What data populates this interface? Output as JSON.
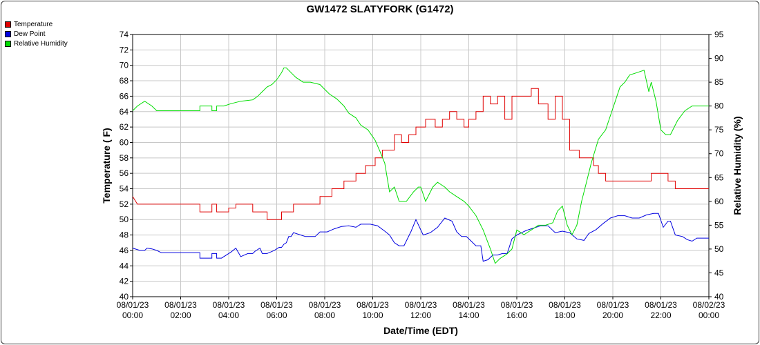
{
  "chart_data": {
    "type": "line",
    "title": "GW1472 SLATYFORK (G1472)",
    "xlabel": "Date/Time (EDT)",
    "ylabel": "Temperature ( F)",
    "y2label": "Relative Humidity (%)",
    "xlim": [
      0,
      24
    ],
    "ylim": [
      40,
      74
    ],
    "y2lim": [
      40,
      95
    ],
    "x_ticks": [
      {
        "date": "08/01/23",
        "time": "00:00"
      },
      {
        "date": "08/01/23",
        "time": "02:00"
      },
      {
        "date": "08/01/23",
        "time": "04:00"
      },
      {
        "date": "08/01/23",
        "time": "06:00"
      },
      {
        "date": "08/01/23",
        "time": "08:00"
      },
      {
        "date": "08/01/23",
        "time": "10:00"
      },
      {
        "date": "08/01/23",
        "time": "12:00"
      },
      {
        "date": "08/01/23",
        "time": "14:00"
      },
      {
        "date": "08/01/23",
        "time": "16:00"
      },
      {
        "date": "08/01/23",
        "time": "18:00"
      },
      {
        "date": "08/01/23",
        "time": "20:00"
      },
      {
        "date": "08/01/23",
        "time": "22:00"
      },
      {
        "date": "08/02/23",
        "time": "00:00"
      }
    ],
    "y_ticks": [
      40,
      42,
      44,
      46,
      48,
      50,
      52,
      54,
      56,
      58,
      60,
      62,
      64,
      66,
      68,
      70,
      72,
      74
    ],
    "y2_ticks": [
      40,
      45,
      50,
      55,
      60,
      65,
      70,
      75,
      80,
      85,
      90,
      95
    ],
    "grid": true,
    "legend_position": "top-left",
    "series": [
      {
        "name": "Temperature",
        "axis": "left",
        "color": "#e00000",
        "x": [
          0,
          0.2,
          2.8,
          2.8,
          3.3,
          3.3,
          3.5,
          3.5,
          4.0,
          4.0,
          4.3,
          4.3,
          5.0,
          5.0,
          5.6,
          5.6,
          6.2,
          6.2,
          6.7,
          6.7,
          7.8,
          7.8,
          8.3,
          8.3,
          8.8,
          8.8,
          9.3,
          9.3,
          9.7,
          9.7,
          10.1,
          10.1,
          10.4,
          10.4,
          10.6,
          10.6,
          10.9,
          10.9,
          11.2,
          11.2,
          11.5,
          11.5,
          11.8,
          11.8,
          12.2,
          12.2,
          12.6,
          12.6,
          12.9,
          12.9,
          13.2,
          13.2,
          13.5,
          13.5,
          13.8,
          13.8,
          14.0,
          14.0,
          14.3,
          14.3,
          14.6,
          14.6,
          14.9,
          14.9,
          15.2,
          15.2,
          15.5,
          15.5,
          15.8,
          15.8,
          16.0,
          16.0,
          16.6,
          16.6,
          16.9,
          16.9,
          17.3,
          17.3,
          17.6,
          17.6,
          17.9,
          17.9,
          18.2,
          18.2,
          18.6,
          18.6,
          19.2,
          19.2,
          19.4,
          19.4,
          19.7,
          19.7,
          20.2,
          20.2,
          20.7,
          20.7,
          21.0,
          21.0,
          21.6,
          21.6,
          22.3,
          22.3,
          22.6,
          22.6,
          23.0,
          23.0,
          24.0
        ],
        "values": [
          53,
          52,
          52,
          51,
          51,
          52,
          52,
          51,
          51,
          51.5,
          51.5,
          52,
          52,
          51,
          51,
          50,
          50,
          51,
          51,
          52,
          52,
          53,
          53,
          54,
          54,
          55,
          55,
          56,
          56,
          57,
          57,
          58,
          58,
          59,
          59,
          59,
          59,
          61,
          61,
          60,
          60,
          61,
          61,
          62,
          62,
          63,
          63,
          62,
          62,
          63,
          63,
          64,
          64,
          63,
          63,
          62,
          62,
          63,
          63,
          64,
          64,
          66,
          66,
          65,
          65,
          66,
          66,
          63,
          63,
          66,
          66,
          66,
          66,
          67,
          67,
          65,
          65,
          63,
          63,
          66,
          66,
          63,
          63,
          59,
          59,
          58,
          58,
          57,
          57,
          56,
          56,
          55,
          55,
          55,
          55,
          55,
          55,
          55,
          55,
          56,
          56,
          55,
          55,
          54,
          54,
          54,
          54
        ]
      },
      {
        "name": "Dew Point",
        "axis": "left",
        "color": "#0000e0",
        "x": [
          0,
          0.3,
          0.5,
          0.6,
          0.8,
          1.0,
          1.2,
          2.8,
          2.8,
          3.3,
          3.3,
          3.5,
          3.5,
          3.7,
          4.1,
          4.3,
          4.5,
          4.8,
          5.0,
          5.1,
          5.3,
          5.4,
          5.6,
          5.9,
          6.1,
          6.2,
          6.3,
          6.4,
          6.5,
          6.6,
          6.7,
          7.0,
          7.2,
          7.6,
          7.8,
          8.0,
          8.1,
          8.4,
          8.7,
          9.0,
          9.3,
          9.5,
          9.9,
          10.2,
          10.5,
          10.7,
          10.9,
          11.1,
          11.3,
          11.6,
          11.8,
          12.1,
          12.4,
          12.7,
          13.0,
          13.3,
          13.5,
          13.7,
          13.9,
          14.1,
          14.3,
          14.5,
          14.6,
          14.8,
          15.0,
          15.2,
          15.4,
          15.6,
          15.8,
          16.0,
          16.4,
          16.6,
          17.0,
          17.3,
          17.6,
          17.9,
          18.2,
          18.5,
          18.8,
          19.0,
          19.3,
          19.6,
          19.9,
          20.2,
          20.5,
          20.8,
          21.1,
          21.4,
          21.7,
          21.9,
          22.1,
          22.3,
          22.4,
          22.6,
          22.9,
          23.1,
          23.3,
          23.5,
          24.0
        ],
        "values": [
          46.3,
          46.0,
          46.0,
          46.3,
          46.2,
          46.0,
          45.7,
          45.7,
          45.0,
          45.0,
          45.6,
          45.6,
          45.0,
          45.0,
          45.8,
          46.3,
          45.2,
          45.6,
          45.6,
          45.9,
          46.3,
          45.6,
          45.6,
          46.0,
          46.4,
          46.4,
          46.8,
          47.0,
          47.8,
          47.8,
          48.3,
          48.0,
          47.8,
          47.8,
          48.4,
          48.4,
          48.4,
          48.8,
          49.1,
          49.2,
          49.0,
          49.4,
          49.4,
          49.2,
          48.5,
          48.0,
          47.0,
          46.6,
          46.6,
          48.5,
          50.0,
          48.0,
          48.3,
          49.0,
          50.2,
          49.8,
          48.4,
          47.8,
          47.8,
          47.2,
          46.6,
          46.6,
          44.6,
          44.8,
          45.4,
          45.4,
          45.6,
          45.6,
          47.5,
          48.0,
          48.6,
          48.8,
          49.2,
          49.2,
          48.3,
          48.5,
          48.3,
          47.5,
          47.3,
          48.2,
          48.7,
          49.5,
          50.2,
          50.5,
          50.5,
          50.2,
          50.2,
          50.6,
          50.8,
          50.8,
          49.0,
          49.8,
          49.8,
          48.0,
          47.8,
          47.4,
          47.2,
          47.6,
          47.6
        ]
      },
      {
        "name": "Relative Humidity",
        "axis": "right",
        "color": "#00dd00",
        "x": [
          0,
          0.2,
          0.5,
          0.8,
          1.0,
          1.2,
          2.8,
          2.8,
          3.3,
          3.3,
          3.5,
          3.5,
          3.8,
          4.1,
          4.5,
          5.0,
          5.2,
          5.4,
          5.6,
          5.8,
          6.0,
          6.2,
          6.3,
          6.4,
          6.5,
          6.6,
          6.8,
          7.1,
          7.4,
          7.8,
          8.0,
          8.2,
          8.5,
          8.8,
          9.0,
          9.3,
          9.5,
          9.8,
          10.1,
          10.3,
          10.5,
          10.7,
          10.9,
          11.1,
          11.4,
          11.7,
          11.9,
          12.0,
          12.2,
          12.5,
          12.7,
          13.0,
          13.2,
          13.5,
          13.8,
          14.0,
          14.3,
          14.6,
          14.9,
          15.1,
          15.3,
          15.6,
          15.8,
          16.0,
          16.3,
          16.6,
          16.9,
          17.2,
          17.5,
          17.7,
          17.9,
          18.1,
          18.3,
          18.5,
          18.7,
          18.9,
          19.1,
          19.4,
          19.7,
          19.9,
          20.1,
          20.3,
          20.5,
          20.7,
          21.0,
          21.3,
          21.5,
          21.6,
          21.8,
          22.0,
          22.2,
          22.4,
          22.7,
          23.0,
          23.3,
          23.6,
          24.0
        ],
        "values": [
          79,
          80,
          81,
          80,
          79,
          79,
          79,
          80,
          80,
          79,
          79,
          80,
          80,
          80.5,
          81,
          81.3,
          82,
          83,
          84,
          84.5,
          85.5,
          87,
          88,
          88,
          87.5,
          87,
          86,
          85,
          85,
          84.5,
          83.5,
          82.5,
          81.5,
          80,
          78.5,
          77.5,
          76,
          75,
          72.8,
          70.5,
          68,
          62,
          63,
          60,
          60,
          62,
          63,
          63,
          60,
          63,
          64,
          63,
          62,
          61,
          60,
          59,
          57,
          54,
          50,
          47,
          48,
          49,
          50,
          54,
          53,
          54,
          55,
          55,
          55.5,
          58,
          59,
          55,
          53,
          55,
          60,
          64,
          68,
          73,
          75,
          78,
          81,
          84,
          85,
          86.5,
          87,
          87.5,
          83,
          85,
          81,
          75,
          74,
          74,
          77,
          79,
          80,
          80,
          80
        ]
      }
    ]
  }
}
